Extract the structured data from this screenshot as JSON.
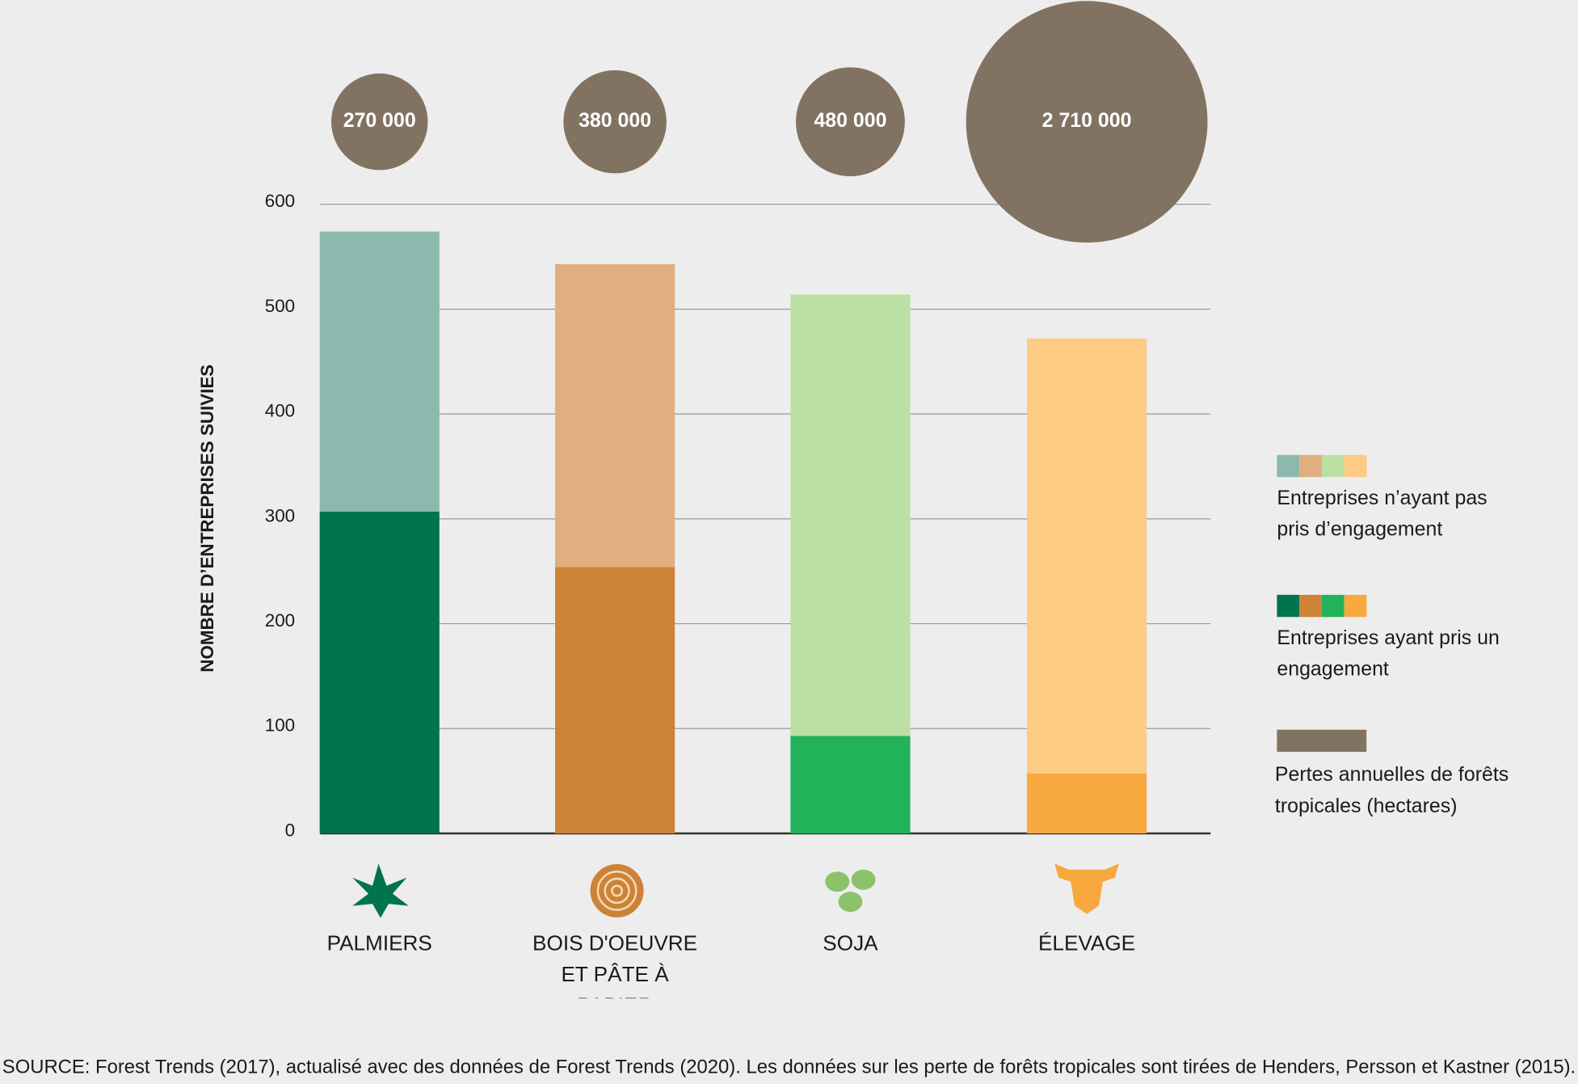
{
  "chart_data": {
    "type": "stacked_bar",
    "y_label": "NOMBRE D’ENTREPRISES SUIVIES",
    "categories": [
      "PALMIERS",
      "BOIS D'OEUVRE ET PÂTE À PAPIER",
      "SOJA",
      "ÉLEVAGE"
    ],
    "series": [
      {
        "name": "Entreprises ayant pris un engagement",
        "colors": [
          "#00734f",
          "#cd8337",
          "#22b25a",
          "#f7a940"
        ],
        "values": [
          307,
          254,
          93,
          57
        ]
      },
      {
        "name": "Entreprises n’ayant pas pris d’engagement",
        "colors": [
          "#8cb9ad",
          "#e0ae80",
          "#bcdfa5",
          "#fdcb83"
        ],
        "values": [
          267,
          289,
          421,
          415
        ]
      }
    ],
    "bubbles": {
      "name": "Pertes annuelles de forêts tropicales (hectares)",
      "color": "#827262",
      "values": [
        270000,
        380000,
        480000,
        2710000
      ],
      "value_labels": [
        "270 000",
        "380 000",
        "480 000",
        "2 710 000"
      ]
    },
    "ylim": [
      0,
      600
    ],
    "yticks": [
      0,
      100,
      200,
      300,
      400,
      500,
      600
    ],
    "grid": true,
    "source": "SOURCE: Forest Trends (2017), actualisé avec des données de Forest Trends (2020). Les données sur les perte de forêts tropicales sont tirées de Henders, Persson et Kastner (2015)."
  }
}
